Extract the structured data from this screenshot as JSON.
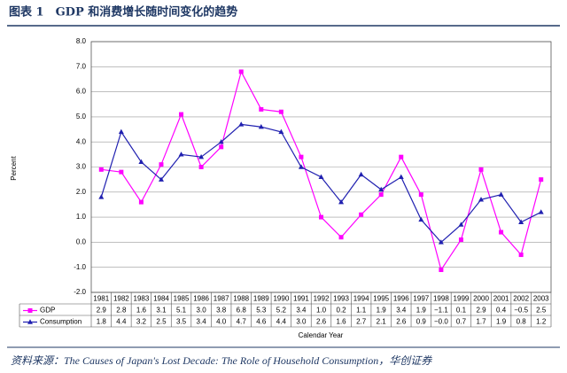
{
  "chart_data": {
    "type": "line",
    "title": "图表 1　GDP 和消费增长随时间变化的趋势",
    "y_label": "Percent",
    "x_label": "Calendar Year",
    "source": "资料来源：The Causes of Japan's Lost Decade: The Role of Household Consumption，华创证券",
    "categories": [
      "1981",
      "1982",
      "1983",
      "1984",
      "1985",
      "1986",
      "1987",
      "1988",
      "1989",
      "1990",
      "1991",
      "1992",
      "1993",
      "1994",
      "1995",
      "1996",
      "1997",
      "1998",
      "1999",
      "2000",
      "2001",
      "2002",
      "2003"
    ],
    "series": [
      {
        "name": "GDP",
        "color": "#ff00ff",
        "marker": "square",
        "values": [
          2.9,
          2.8,
          1.6,
          3.1,
          5.1,
          3.0,
          3.8,
          6.8,
          5.3,
          5.2,
          3.4,
          1.0,
          0.2,
          1.1,
          1.9,
          3.4,
          1.9,
          -1.1,
          0.1,
          2.9,
          0.4,
          -0.5,
          2.5
        ],
        "value_labels": [
          "2.9",
          "2.8",
          "1.6",
          "3.1",
          "5.1",
          "3.0",
          "3.8",
          "6.8",
          "5.3",
          "5.2",
          "3.4",
          "1.0",
          "0.2",
          "1.1",
          "1.9",
          "3.4",
          "1.9",
          "−1.1",
          "0.1",
          "2.9",
          "0.4",
          "−0.5",
          "2.5"
        ]
      },
      {
        "name": "Consumption",
        "color": "#2020b0",
        "marker": "triangle",
        "values": [
          1.8,
          4.4,
          3.2,
          2.5,
          3.5,
          3.4,
          4.0,
          4.7,
          4.6,
          4.4,
          3.0,
          2.6,
          1.6,
          2.7,
          2.1,
          2.6,
          0.9,
          -0.0,
          0.7,
          1.7,
          1.9,
          0.8,
          1.2
        ],
        "value_labels": [
          "1.8",
          "4.4",
          "3.2",
          "2.5",
          "3.5",
          "3.4",
          "4.0",
          "4.7",
          "4.6",
          "4.4",
          "3.0",
          "2.6",
          "1.6",
          "2.7",
          "2.1",
          "2.6",
          "0.9",
          "−0.0",
          "0.7",
          "1.7",
          "1.9",
          "0.8",
          "1.2"
        ]
      }
    ],
    "ylim": [
      -2,
      8
    ],
    "yticks": [
      {
        "value": -2,
        "label": "-2.0"
      },
      {
        "value": -1,
        "label": "-1.0"
      },
      {
        "value": 0,
        "label": "0.0"
      },
      {
        "value": 1,
        "label": "1.0"
      },
      {
        "value": 2,
        "label": "2.0"
      },
      {
        "value": 3,
        "label": "3.0"
      },
      {
        "value": 4,
        "label": "4.0"
      },
      {
        "value": 5,
        "label": "5.0"
      },
      {
        "value": 6,
        "label": "6.0"
      },
      {
        "value": 7,
        "label": "7.0"
      },
      {
        "value": 8,
        "label": "8.0"
      }
    ],
    "grid": true
  }
}
